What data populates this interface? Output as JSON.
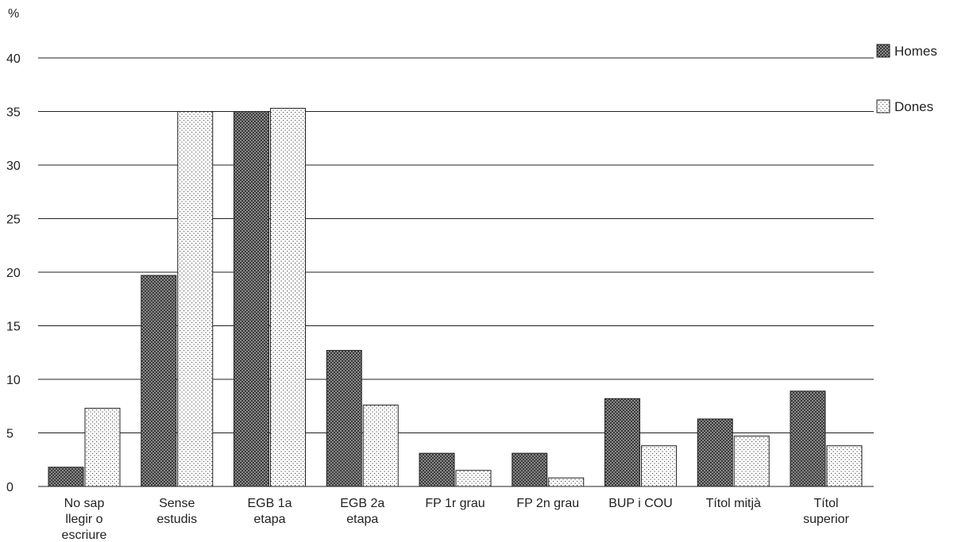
{
  "chart_data": {
    "type": "bar",
    "ylabel": "%",
    "ylim": [
      0,
      40
    ],
    "yticks": [
      "0",
      "5",
      "10",
      "15",
      "20",
      "25",
      "30",
      "35",
      "40"
    ],
    "grid": true,
    "legend_position": "top-right",
    "categories": [
      [
        "No sap",
        "llegir o",
        "escriure"
      ],
      [
        "Sense",
        "estudis"
      ],
      [
        "EGB 1a",
        "etapa"
      ],
      [
        "EGB 2a",
        "etapa"
      ],
      [
        "FP 1r grau"
      ],
      [
        "FP 2n grau"
      ],
      [
        "BUP i COU"
      ],
      [
        "Títol mitjà"
      ],
      [
        "Títol",
        "superior"
      ]
    ],
    "series": [
      {
        "name": "Homes",
        "pattern": "dark-checker",
        "values": [
          1.8,
          19.7,
          35.0,
          12.7,
          3.1,
          3.1,
          8.2,
          6.3,
          8.9
        ]
      },
      {
        "name": "Dones",
        "pattern": "light-dots",
        "values": [
          7.3,
          35.0,
          35.3,
          7.6,
          1.5,
          0.8,
          3.8,
          4.7,
          3.8
        ]
      }
    ]
  }
}
